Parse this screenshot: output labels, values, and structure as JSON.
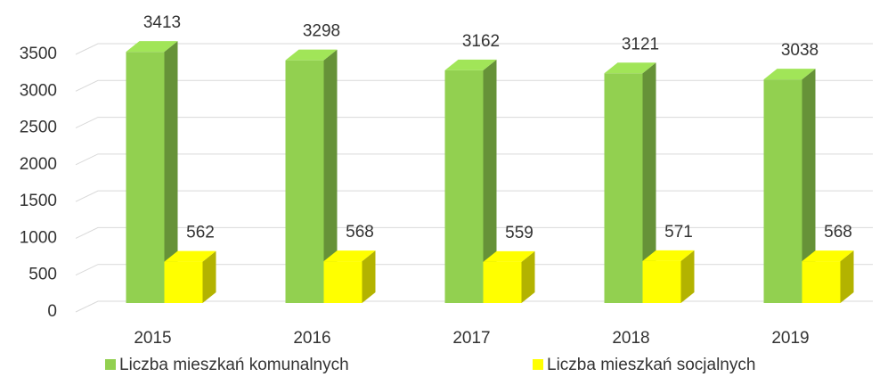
{
  "chart_data": {
    "type": "bar3d",
    "categories": [
      "2015",
      "2016",
      "2017",
      "2018",
      "2019"
    ],
    "series": [
      {
        "name": "Liczba mieszkań komunalnych",
        "color": "#92d050",
        "values": [
          3413,
          3298,
          3162,
          3121,
          3038
        ]
      },
      {
        "name": "Liczba mieszkań socjalnych",
        "color": "#ffff00",
        "values": [
          562,
          568,
          559,
          571,
          568
        ]
      }
    ],
    "ylim": [
      0,
      3500
    ],
    "yticks": [
      0,
      500,
      1000,
      1500,
      2000,
      2500,
      3000,
      3500
    ],
    "grid": true,
    "legend": "bottom"
  }
}
